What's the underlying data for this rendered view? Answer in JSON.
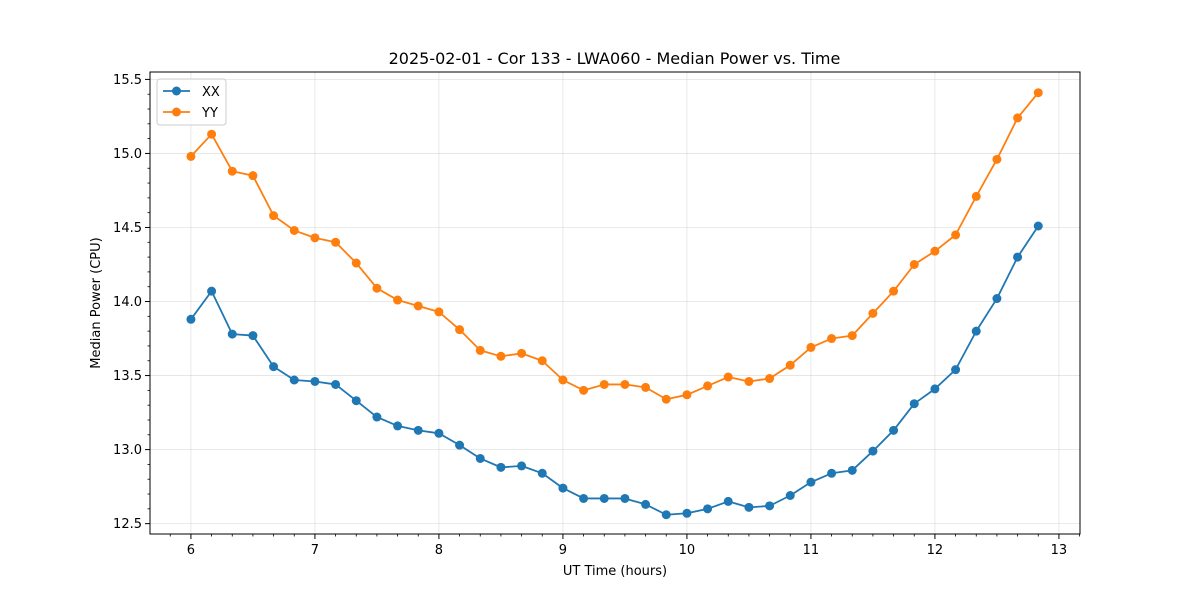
{
  "chart_data": {
    "type": "line",
    "title": "2025-02-01 - Cor 133 - LWA060 - Median Power vs. Time",
    "xlabel": "UT Time (hours)",
    "ylabel": "Median Power (CPU)",
    "xlim": [
      5.67,
      13.17
    ],
    "ylim": [
      12.43,
      15.55
    ],
    "xticks": [
      "6",
      "7",
      "8",
      "9",
      "10",
      "11",
      "12",
      "13"
    ],
    "yticks": [
      "12.5",
      "13.0",
      "13.5",
      "14.0",
      "14.5",
      "15.0",
      "15.5"
    ],
    "grid": true,
    "legend": "top-left",
    "x": [
      6.0,
      6.1667,
      6.3333,
      6.5,
      6.6667,
      6.8333,
      7.0,
      7.1667,
      7.3333,
      7.5,
      7.6667,
      7.8333,
      8.0,
      8.1667,
      8.3333,
      8.5,
      8.6667,
      8.8333,
      9.0,
      9.1667,
      9.3333,
      9.5,
      9.6667,
      9.8333,
      10.0,
      10.1667,
      10.3333,
      10.5,
      10.6667,
      10.8333,
      11.0,
      11.1667,
      11.3333,
      11.5,
      11.6667,
      11.8333,
      12.0,
      12.1667,
      12.3333,
      12.5,
      12.6667,
      12.8333
    ],
    "series": [
      {
        "name": "XX",
        "color": "#1f77b4",
        "values": [
          13.88,
          14.07,
          13.78,
          13.77,
          13.56,
          13.47,
          13.46,
          13.44,
          13.33,
          13.22,
          13.16,
          13.13,
          13.11,
          13.03,
          12.94,
          12.88,
          12.89,
          12.84,
          12.74,
          12.67,
          12.67,
          12.67,
          12.63,
          12.56,
          12.57,
          12.6,
          12.65,
          12.61,
          12.62,
          12.69,
          12.78,
          12.84,
          12.86,
          12.99,
          13.13,
          13.31,
          13.41,
          13.54,
          13.8,
          14.02,
          14.3,
          14.51
        ]
      },
      {
        "name": "YY",
        "color": "#ff7f0e",
        "values": [
          14.98,
          15.13,
          14.88,
          14.85,
          14.58,
          14.48,
          14.43,
          14.4,
          14.26,
          14.09,
          14.01,
          13.97,
          13.93,
          13.81,
          13.67,
          13.63,
          13.65,
          13.6,
          13.47,
          13.4,
          13.44,
          13.44,
          13.42,
          13.34,
          13.37,
          13.43,
          13.49,
          13.46,
          13.48,
          13.57,
          13.69,
          13.75,
          13.77,
          13.92,
          14.07,
          14.25,
          14.34,
          14.45,
          14.71,
          14.96,
          15.24,
          15.41
        ]
      }
    ]
  }
}
